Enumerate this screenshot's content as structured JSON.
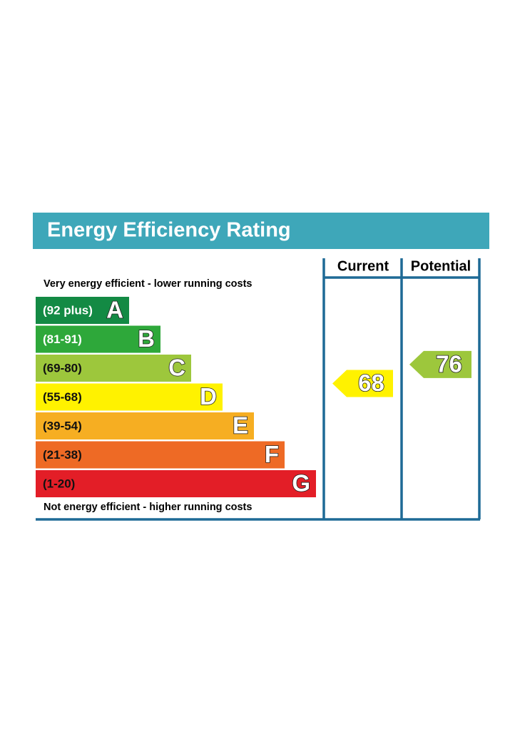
{
  "chart_data": {
    "type": "epc",
    "title": "Energy Efficiency Rating",
    "top_note": "Very energy efficient - lower running costs",
    "bottom_note": "Not energy efficient - higher running costs",
    "columns": [
      "Current",
      "Potential"
    ],
    "bands": [
      {
        "range": "(92 plus)",
        "letter": "A",
        "color": "#138a44",
        "text_color": "#ffffff"
      },
      {
        "range": "(81-91)",
        "letter": "B",
        "color": "#2ea83a",
        "text_color": "#ffffff"
      },
      {
        "range": "(69-80)",
        "letter": "C",
        "color": "#9dc73c",
        "text_color": "#111111"
      },
      {
        "range": "(55-68)",
        "letter": "D",
        "color": "#fff200",
        "text_color": "#111111"
      },
      {
        "range": "(39-54)",
        "letter": "E",
        "color": "#f6ae22",
        "text_color": "#111111"
      },
      {
        "range": "(21-38)",
        "letter": "F",
        "color": "#ee6a25",
        "text_color": "#111111"
      },
      {
        "range": "(1-20)",
        "letter": "G",
        "color": "#e31e27",
        "text_color": "#111111"
      }
    ],
    "ratings": [
      {
        "value": 68,
        "color": "#fff200"
      },
      {
        "value": 76,
        "color": "#9dc73c"
      }
    ]
  }
}
